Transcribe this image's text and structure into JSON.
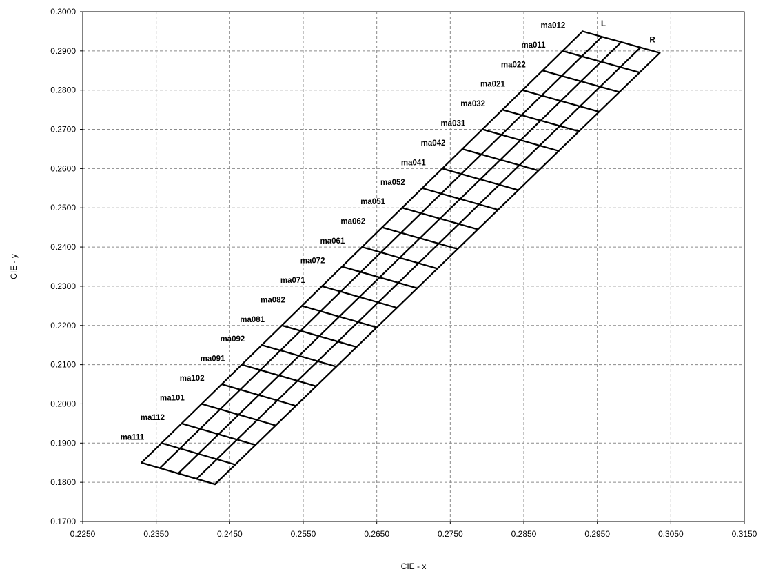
{
  "chart_data": {
    "type": "line",
    "xlabel": "CIE - x",
    "ylabel": "CIE - y",
    "xlim": [
      0.225,
      0.315
    ],
    "ylim": [
      0.17,
      0.3
    ],
    "x_ticks": [
      "0.2250",
      "0.2350",
      "0.2450",
      "0.2550",
      "0.2650",
      "0.2750",
      "0.2850",
      "0.2950",
      "0.3050",
      "0.3150"
    ],
    "y_ticks": [
      "0.3000",
      "0.2900",
      "0.2800",
      "0.2700",
      "0.2600",
      "0.2500",
      "0.2400",
      "0.2300",
      "0.2200",
      "0.2100",
      "0.2000",
      "0.1900",
      "0.1800",
      "0.1700"
    ],
    "grid": true,
    "column_labels": [
      "L",
      "R"
    ],
    "mesh": {
      "left_edge": [
        [
          0.233,
          0.185
        ],
        [
          0.293,
          0.295
        ]
      ],
      "right_edge": [
        [
          0.243,
          0.1795
        ],
        [
          0.3035,
          0.2895
        ]
      ],
      "column_fractions": [
        0,
        0.25,
        0.5,
        0.75,
        1
      ],
      "row_count": 22
    },
    "rows": [
      {
        "label": "ma012",
        "point": [
          0.293,
          0.295
        ]
      },
      {
        "label": "ma011",
        "point": [
          0.2903,
          0.29
        ]
      },
      {
        "label": "ma022",
        "point": [
          0.2876,
          0.285
        ]
      },
      {
        "label": "ma021",
        "point": [
          0.2848,
          0.28
        ]
      },
      {
        "label": "ma032",
        "point": [
          0.2821,
          0.275
        ]
      },
      {
        "label": "ma031",
        "point": [
          0.2794,
          0.27
        ]
      },
      {
        "label": "ma042",
        "point": [
          0.2767,
          0.265
        ]
      },
      {
        "label": "ma041",
        "point": [
          0.274,
          0.26
        ]
      },
      {
        "label": "ma052",
        "point": [
          0.2712,
          0.255
        ]
      },
      {
        "label": "ma051",
        "point": [
          0.2685,
          0.25
        ]
      },
      {
        "label": "ma062",
        "point": [
          0.2658,
          0.245
        ]
      },
      {
        "label": "ma061",
        "point": [
          0.263,
          0.24
        ]
      },
      {
        "label": "ma072",
        "point": [
          0.2603,
          0.235
        ]
      },
      {
        "label": "ma071",
        "point": [
          0.2576,
          0.23
        ]
      },
      {
        "label": "ma082",
        "point": [
          0.2549,
          0.225
        ]
      },
      {
        "label": "ma081",
        "point": [
          0.2521,
          0.22
        ]
      },
      {
        "label": "ma092",
        "point": [
          0.2494,
          0.215
        ]
      },
      {
        "label": "ma091",
        "point": [
          0.2467,
          0.21
        ]
      },
      {
        "label": "ma102",
        "point": [
          0.2439,
          0.205
        ]
      },
      {
        "label": "ma101",
        "point": [
          0.2412,
          0.2
        ]
      },
      {
        "label": "ma112",
        "point": [
          0.2385,
          0.195
        ]
      },
      {
        "label": "ma111",
        "point": [
          0.2357,
          0.19
        ]
      }
    ]
  }
}
